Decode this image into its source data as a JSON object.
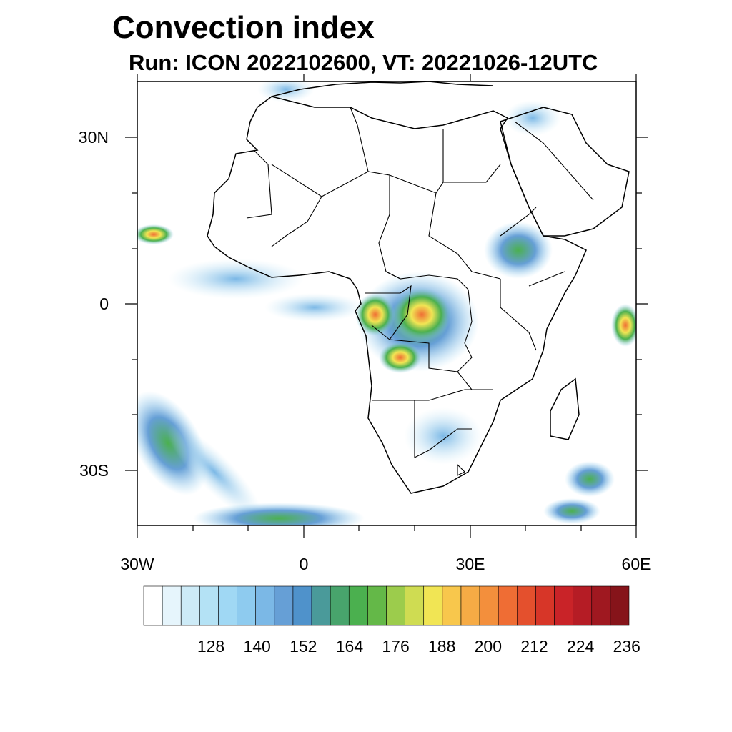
{
  "title": "Convection index",
  "subtitle": "Run: ICON 2022102600,  VT: 20221026-12UTC",
  "axes": {
    "lat_labels": [
      "30N",
      "0",
      "30S"
    ],
    "lon_labels": [
      "30W",
      "0",
      "30E",
      "60E"
    ]
  },
  "colorbar": {
    "tick_labels": [
      "128",
      "140",
      "152",
      "164",
      "176",
      "188",
      "200",
      "212",
      "224",
      "236"
    ],
    "colors": [
      "#ffffff",
      "#e6f5fc",
      "#cdebf7",
      "#b4e2f5",
      "#a0d8f4",
      "#8ecbef",
      "#7bb8e6",
      "#669fd6",
      "#4f92cb",
      "#4a9a9a",
      "#48a46c",
      "#4bb04f",
      "#64b848",
      "#9ccc4c",
      "#cfdc52",
      "#f1e554",
      "#f8c74c",
      "#f6ab45",
      "#f38f3c",
      "#ef6d34",
      "#e4502d",
      "#d73628",
      "#c92328",
      "#b51c25",
      "#9f1820",
      "#86141a"
    ],
    "range": [
      116,
      242
    ],
    "step": 4.5
  }
}
